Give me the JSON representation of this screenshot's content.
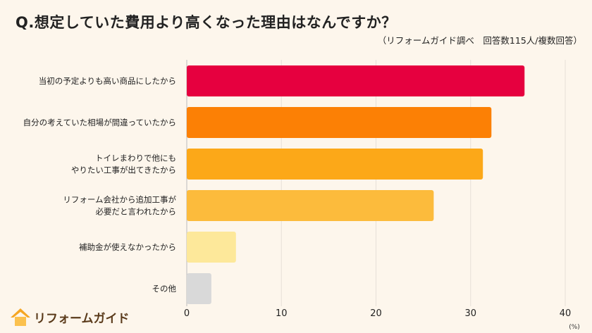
{
  "chart_data": {
    "type": "bar",
    "orientation": "horizontal",
    "title": "Q.想定していた費用より高くなった理由はなんですか？",
    "subtitle": "（リフォームガイド調べ　回答数115人/複数回答）",
    "categories": [
      "当初の予定よりも高い商品にしたから",
      "自分の考えていた相場が間違っていたから",
      "トイレまわりで他にも\nやりたい工事が出てきたから",
      "リフォーム会社から追加工事が\n必要だと言われたから",
      "補助金が使えなかったから",
      "その他"
    ],
    "values": [
      35.7,
      32.2,
      31.3,
      26.1,
      5.2,
      2.6
    ],
    "colors": [
      "#e6003f",
      "#fc8005",
      "#fca818",
      "#fcbb3c",
      "#fde89a",
      "#d9d9d9"
    ],
    "xlim": [
      0,
      40
    ],
    "xticks": [
      0,
      10,
      20,
      30,
      40
    ],
    "xunit": "(%)",
    "grid": true
  },
  "logo": {
    "text": "リフォームガイド",
    "icon": "house-icon",
    "color": "#f5a623"
  }
}
